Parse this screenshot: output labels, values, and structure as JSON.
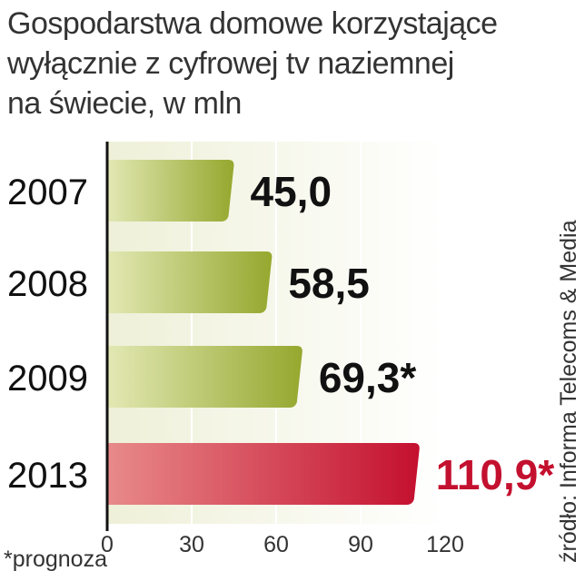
{
  "title_lines": [
    "Gospodarstwa domowe korzystające",
    "wyłącznie z cyfrowej tv naziemnej",
    "na świecie, w mln"
  ],
  "source": "źródło: Informa Telecoms & Media",
  "footnote": "*prognoza",
  "colors": {
    "bar_green_dark": "#95a82e",
    "bar_green_light": "#e3e8b4",
    "bar_red_dark": "#c4102f",
    "bar_red_light": "#e88a8a",
    "highlight_label": "#c4102f",
    "plot_background": "#eef0d8"
  },
  "chart_data": {
    "type": "bar",
    "orientation": "horizontal",
    "categories": [
      "2007",
      "2008",
      "2009",
      "2013"
    ],
    "values": [
      45.0,
      58.5,
      69.3,
      110.9
    ],
    "value_labels": [
      "45,0",
      "58,5",
      "69,3*",
      "110,9*"
    ],
    "highlight_index": 3,
    "xlim": [
      0,
      120
    ],
    "xticks": [
      0,
      30,
      60,
      90,
      120
    ],
    "grid": true
  }
}
